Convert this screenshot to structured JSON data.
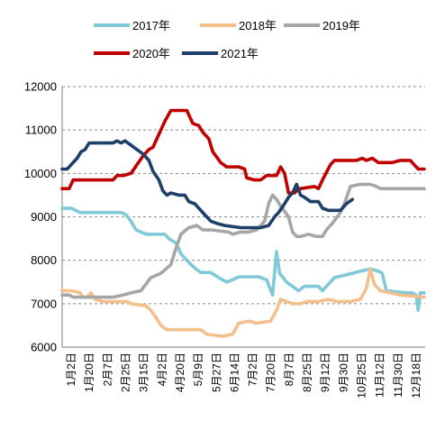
{
  "chart_data": {
    "type": "line",
    "x_tick_labels": [
      "1月2日",
      "1月20日",
      "2月7日",
      "2月25日",
      "3月15日",
      "4月2日",
      "4月20日",
      "5月9日",
      "5月27日",
      "6月14日",
      "7月2日",
      "7月20日",
      "8月7日",
      "8月25日",
      "9月12日",
      "9月30日",
      "10月25日",
      "11月12日",
      "11月30日",
      "12月18日"
    ],
    "y_ticks": [
      6000,
      7000,
      8000,
      9000,
      10000,
      11000,
      12000
    ],
    "ylim": [
      6000,
      12000
    ],
    "x_range_days": [
      1,
      365
    ],
    "grid": "horizontal-dashed",
    "legend_position": "top",
    "series": [
      {
        "name": "2017年",
        "color": "#7fc9d8",
        "points": [
          [
            1,
            9200
          ],
          [
            10,
            9200
          ],
          [
            19,
            9100
          ],
          [
            60,
            9100
          ],
          [
            65,
            9050
          ],
          [
            70,
            8900
          ],
          [
            75,
            8700
          ],
          [
            80,
            8650
          ],
          [
            86,
            8600
          ],
          [
            104,
            8600
          ],
          [
            108,
            8500
          ],
          [
            115,
            8400
          ],
          [
            120,
            8150
          ],
          [
            128,
            7950
          ],
          [
            135,
            7800
          ],
          [
            140,
            7720
          ],
          [
            150,
            7720
          ],
          [
            158,
            7600
          ],
          [
            166,
            7500
          ],
          [
            172,
            7550
          ],
          [
            178,
            7620
          ],
          [
            198,
            7620
          ],
          [
            206,
            7550
          ],
          [
            212,
            7200
          ],
          [
            214,
            7700
          ],
          [
            216,
            8200
          ],
          [
            219,
            7700
          ],
          [
            226,
            7500
          ],
          [
            232,
            7400
          ],
          [
            238,
            7300
          ],
          [
            244,
            7400
          ],
          [
            258,
            7400
          ],
          [
            262,
            7300
          ],
          [
            268,
            7450
          ],
          [
            274,
            7600
          ],
          [
            292,
            7700
          ],
          [
            300,
            7750
          ],
          [
            310,
            7800
          ],
          [
            318,
            7750
          ],
          [
            322,
            7700
          ],
          [
            326,
            7300
          ],
          [
            345,
            7250
          ],
          [
            352,
            7250
          ],
          [
            356,
            7200
          ],
          [
            358,
            6850
          ],
          [
            360,
            7250
          ],
          [
            364,
            7250
          ]
        ]
      },
      {
        "name": "2018年",
        "color": "#f3c08c",
        "points": [
          [
            1,
            7300
          ],
          [
            10,
            7300
          ],
          [
            19,
            7250
          ],
          [
            22,
            7150
          ],
          [
            26,
            7150
          ],
          [
            30,
            7250
          ],
          [
            34,
            7100
          ],
          [
            42,
            7050
          ],
          [
            66,
            7050
          ],
          [
            70,
            7000
          ],
          [
            85,
            6950
          ],
          [
            90,
            6850
          ],
          [
            96,
            6650
          ],
          [
            100,
            6500
          ],
          [
            106,
            6400
          ],
          [
            140,
            6400
          ],
          [
            146,
            6300
          ],
          [
            162,
            6250
          ],
          [
            172,
            6300
          ],
          [
            178,
            6550
          ],
          [
            188,
            6600
          ],
          [
            196,
            6550
          ],
          [
            210,
            6600
          ],
          [
            216,
            6850
          ],
          [
            220,
            7100
          ],
          [
            226,
            7050
          ],
          [
            232,
            7000
          ],
          [
            240,
            7000
          ],
          [
            246,
            7050
          ],
          [
            258,
            7050
          ],
          [
            268,
            7100
          ],
          [
            276,
            7050
          ],
          [
            290,
            7050
          ],
          [
            300,
            7100
          ],
          [
            306,
            7350
          ],
          [
            310,
            7800
          ],
          [
            314,
            7450
          ],
          [
            320,
            7300
          ],
          [
            340,
            7200
          ],
          [
            364,
            7150
          ]
        ]
      },
      {
        "name": "2019年",
        "color": "#a6a6a6",
        "points": [
          [
            1,
            7200
          ],
          [
            8,
            7200
          ],
          [
            12,
            7150
          ],
          [
            38,
            7150
          ],
          [
            52,
            7150
          ],
          [
            62,
            7200
          ],
          [
            70,
            7250
          ],
          [
            80,
            7300
          ],
          [
            90,
            7600
          ],
          [
            100,
            7700
          ],
          [
            110,
            7900
          ],
          [
            114,
            8200
          ],
          [
            120,
            8600
          ],
          [
            128,
            8750
          ],
          [
            136,
            8800
          ],
          [
            142,
            8700
          ],
          [
            150,
            8700
          ],
          [
            168,
            8650
          ],
          [
            172,
            8600
          ],
          [
            180,
            8650
          ],
          [
            188,
            8650
          ],
          [
            196,
            8700
          ],
          [
            204,
            8900
          ],
          [
            208,
            9300
          ],
          [
            212,
            9500
          ],
          [
            216,
            9400
          ],
          [
            220,
            9250
          ],
          [
            228,
            9000
          ],
          [
            232,
            8650
          ],
          [
            236,
            8550
          ],
          [
            240,
            8550
          ],
          [
            248,
            8600
          ],
          [
            256,
            8550
          ],
          [
            262,
            8550
          ],
          [
            266,
            8700
          ],
          [
            272,
            8850
          ],
          [
            280,
            9100
          ],
          [
            284,
            9300
          ],
          [
            290,
            9700
          ],
          [
            300,
            9750
          ],
          [
            310,
            9750
          ],
          [
            316,
            9700
          ],
          [
            320,
            9650
          ],
          [
            364,
            9650
          ]
        ]
      },
      {
        "name": "2020年",
        "color": "#c00000",
        "points": [
          [
            1,
            9650
          ],
          [
            8,
            9650
          ],
          [
            12,
            9850
          ],
          [
            18,
            9850
          ],
          [
            52,
            9850
          ],
          [
            56,
            9950
          ],
          [
            62,
            9950
          ],
          [
            70,
            10000
          ],
          [
            76,
            10200
          ],
          [
            82,
            10400
          ],
          [
            88,
            10550
          ],
          [
            92,
            10600
          ],
          [
            96,
            10800
          ],
          [
            104,
            11200
          ],
          [
            110,
            11450
          ],
          [
            114,
            11450
          ],
          [
            126,
            11450
          ],
          [
            132,
            11150
          ],
          [
            138,
            11100
          ],
          [
            142,
            10950
          ],
          [
            148,
            10800
          ],
          [
            152,
            10500
          ],
          [
            160,
            10250
          ],
          [
            166,
            10150
          ],
          [
            178,
            10150
          ],
          [
            184,
            10100
          ],
          [
            186,
            9900
          ],
          [
            194,
            9850
          ],
          [
            200,
            9850
          ],
          [
            206,
            9950
          ],
          [
            216,
            9950
          ],
          [
            220,
            10150
          ],
          [
            224,
            10000
          ],
          [
            228,
            9550
          ],
          [
            234,
            9550
          ],
          [
            236,
            9600
          ],
          [
            240,
            9650
          ],
          [
            254,
            9700
          ],
          [
            258,
            9650
          ],
          [
            262,
            9850
          ],
          [
            270,
            10200
          ],
          [
            274,
            10300
          ],
          [
            282,
            10300
          ],
          [
            296,
            10300
          ],
          [
            302,
            10350
          ],
          [
            306,
            10300
          ],
          [
            312,
            10350
          ],
          [
            318,
            10250
          ],
          [
            332,
            10250
          ],
          [
            340,
            10300
          ],
          [
            350,
            10300
          ],
          [
            354,
            10200
          ],
          [
            358,
            10100
          ],
          [
            364,
            10100
          ]
        ]
      },
      {
        "name": "2021年",
        "color": "#1f3f6b",
        "points": [
          [
            1,
            10100
          ],
          [
            6,
            10100
          ],
          [
            10,
            10200
          ],
          [
            16,
            10350
          ],
          [
            20,
            10500
          ],
          [
            24,
            10550
          ],
          [
            28,
            10700
          ],
          [
            34,
            10700
          ],
          [
            52,
            10700
          ],
          [
            56,
            10750
          ],
          [
            60,
            10700
          ],
          [
            64,
            10750
          ],
          [
            70,
            10650
          ],
          [
            76,
            10550
          ],
          [
            82,
            10450
          ],
          [
            88,
            10300
          ],
          [
            92,
            10050
          ],
          [
            98,
            9850
          ],
          [
            102,
            9600
          ],
          [
            106,
            9500
          ],
          [
            110,
            9550
          ],
          [
            118,
            9500
          ],
          [
            124,
            9500
          ],
          [
            128,
            9350
          ],
          [
            134,
            9300
          ],
          [
            140,
            9150
          ],
          [
            144,
            9050
          ],
          [
            150,
            8900
          ],
          [
            156,
            8850
          ],
          [
            164,
            8800
          ],
          [
            180,
            8750
          ],
          [
            200,
            8750
          ],
          [
            208,
            8800
          ],
          [
            214,
            9000
          ],
          [
            218,
            9100
          ],
          [
            224,
            9300
          ],
          [
            228,
            9450
          ],
          [
            232,
            9550
          ],
          [
            236,
            9750
          ],
          [
            240,
            9500
          ],
          [
            244,
            9450
          ],
          [
            250,
            9350
          ],
          [
            258,
            9350
          ],
          [
            262,
            9200
          ],
          [
            268,
            9150
          ],
          [
            280,
            9150
          ],
          [
            286,
            9300
          ],
          [
            292,
            9400
          ]
        ]
      }
    ]
  }
}
